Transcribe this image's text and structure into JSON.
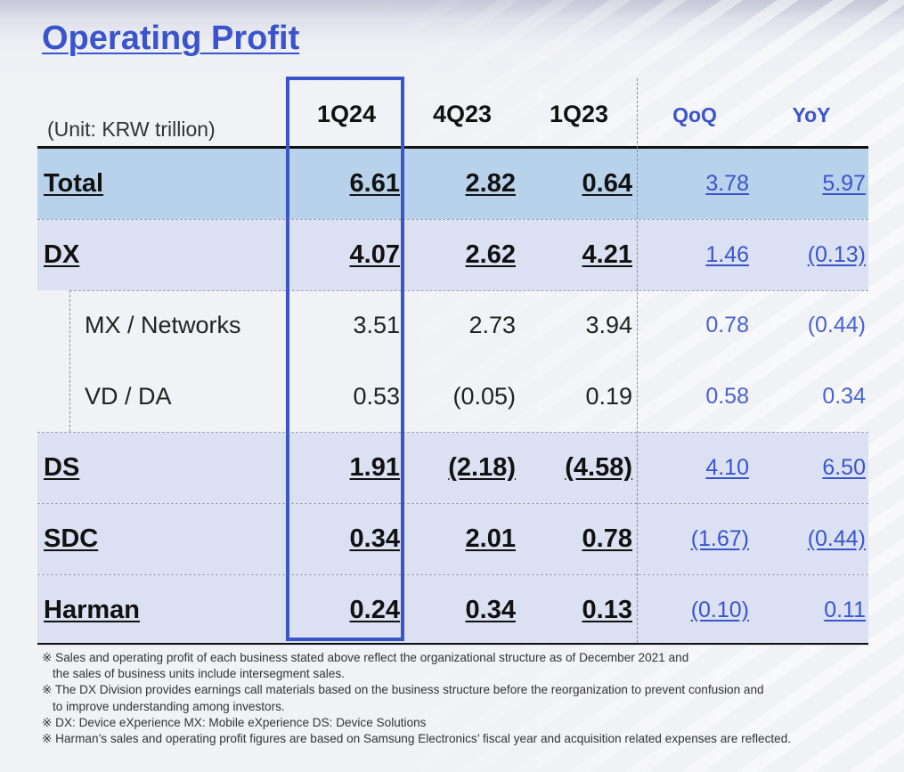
{
  "title": "Operating Profit",
  "unit": "(Unit: KRW trillion)",
  "columns": [
    "1Q24",
    "4Q23",
    "1Q23",
    "QoQ",
    "YoY"
  ],
  "rows": [
    {
      "label": "Total",
      "values": [
        "6.61",
        "2.82",
        "0.64",
        "3.78",
        "5.97"
      ]
    },
    {
      "label": "DX",
      "values": [
        "4.07",
        "2.62",
        "4.21",
        "1.46",
        "(0.13)"
      ]
    },
    {
      "label": "MX / Networks",
      "values": [
        "3.51",
        "2.73",
        "3.94",
        "0.78",
        "(0.44)"
      ]
    },
    {
      "label": "VD / DA",
      "values": [
        "0.53",
        "(0.05)",
        "0.19",
        "0.58",
        "0.34"
      ]
    },
    {
      "label": "DS",
      "values": [
        "1.91",
        "(2.18)",
        "(4.58)",
        "4.10",
        "6.50"
      ]
    },
    {
      "label": "SDC",
      "values": [
        "0.34",
        "2.01",
        "0.78",
        "(1.67)",
        "(0.44)"
      ]
    },
    {
      "label": "Harman",
      "values": [
        "0.24",
        "0.34",
        "0.13",
        "(0.10)",
        "0.11"
      ]
    }
  ],
  "notes": [
    "※ Sales and operating profit of each business stated above reflect the organizational structure  as of December 2021 and",
    "the sales of business units include intersegment sales.",
    "※ The DX Division provides earnings call materials based on the business structure before the reorganization to prevent confusion and",
    "to improve understanding among investors.",
    "※ DX: Device eXperience MX: Mobile eXperience DS: Device Solutions",
    "※ Harman’s sales and operating profit figures are based on Samsung Electronics’ fiscal year and acquisition related expenses  are reflected."
  ],
  "colors": {
    "accent": "#3a55cc",
    "total_band": "#b9d2ec",
    "segment_band": "#dbe1f2"
  }
}
